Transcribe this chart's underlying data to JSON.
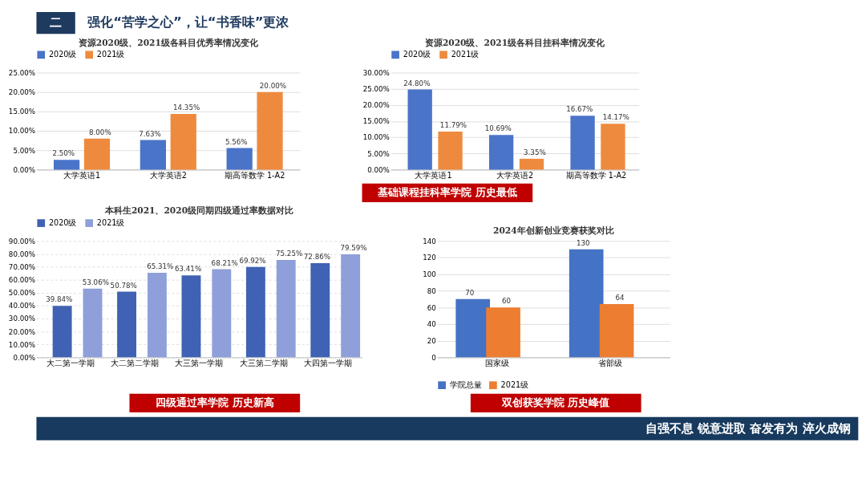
{
  "chart_data": [
    {
      "type": "bar",
      "title": "资源2020级、2021级各科目优秀率情况变化",
      "categories": [
        "大学英语1",
        "大学英语2",
        "期高等数学 1-A2"
      ],
      "series": [
        {
          "name": "2020级",
          "color": "#4a74c8",
          "values": [
            2.5,
            7.63,
            5.56
          ],
          "value_labels": [
            "2.50%",
            "7.63%",
            "5.56%"
          ]
        },
        {
          "name": "2021级",
          "color": "#ee8a3e",
          "values": [
            8.0,
            14.35,
            20.0
          ],
          "value_labels": [
            "8.00%",
            "14.35%",
            "20.00%"
          ]
        }
      ],
      "ylim": [
        0,
        25
      ],
      "yticks": [
        {
          "value": 0,
          "label": "0.00%"
        },
        {
          "value": 5,
          "label": "5.00%"
        },
        {
          "value": 10,
          "label": "10.00%"
        },
        {
          "value": 15,
          "label": "15.00%"
        },
        {
          "value": 20,
          "label": "20.00%"
        },
        {
          "value": 25,
          "label": "25.00%"
        }
      ],
      "grid": "y",
      "legend": "top",
      "annotations": [
        "二",
        "强化“苦学之心”，让“书香味”更浓"
      ]
    },
    {
      "type": "bar",
      "title": "资源2020级、2021级各科目挂科率情况变化",
      "categories": [
        "大学英语1",
        "大学英语2",
        "期高等数学 1-A2"
      ],
      "series": [
        {
          "name": "2020级",
          "color": "#4a74c8",
          "values": [
            24.8,
            10.69,
            16.67
          ],
          "value_labels": [
            "24.80%",
            "10.69%",
            "16.67%"
          ]
        },
        {
          "name": "2021级",
          "color": "#ee8a3e",
          "values": [
            11.79,
            3.35,
            14.17
          ],
          "value_labels": [
            "11.79%",
            "3.35%",
            "14.17%"
          ]
        }
      ],
      "ylim": [
        0,
        30
      ],
      "yticks": [
        {
          "value": 0,
          "label": "0.00%"
        },
        {
          "value": 5,
          "label": "5.00%"
        },
        {
          "value": 10,
          "label": "10.00%"
        },
        {
          "value": 15,
          "label": "15.00%"
        },
        {
          "value": 20,
          "label": "20.00%"
        },
        {
          "value": 25,
          "label": "25.00%"
        },
        {
          "value": 30,
          "label": "30.00%"
        }
      ],
      "grid": "y",
      "legend": "top",
      "annotations": [
        "基础课程挂科率学院 历史最低"
      ]
    },
    {
      "type": "bar",
      "title": "本科生2021、2020级同期四级通过率数据对比",
      "categories": [
        "大二第一学期",
        "大二第二学期",
        "大三第一学期",
        "大三第二学期",
        "大四第一学期"
      ],
      "series": [
        {
          "name": "2020级",
          "color": "#3f62b4",
          "values": [
            39.84,
            50.78,
            63.41,
            69.92,
            72.86
          ],
          "value_labels": [
            "39.84%",
            "50.78%",
            "63.41%",
            "69.92%",
            "72.86%"
          ]
        },
        {
          "name": "2021级",
          "color": "#8e9fd9",
          "values": [
            53.06,
            65.31,
            68.21,
            75.25,
            79.59
          ],
          "value_labels": [
            "53.06%",
            "65.31%",
            "68.21%",
            "75.25%",
            "79.59%"
          ]
        }
      ],
      "ylim": [
        0,
        90
      ],
      "yticks": [
        {
          "value": 0,
          "label": "0.00%"
        },
        {
          "value": 10,
          "label": "10.00%"
        },
        {
          "value": 20,
          "label": "20.00%"
        },
        {
          "value": 30,
          "label": "30.00%"
        },
        {
          "value": 40,
          "label": "40.00%"
        },
        {
          "value": 50,
          "label": "50.00%"
        },
        {
          "value": 60,
          "label": "60.00%"
        },
        {
          "value": 70,
          "label": "70.00%"
        },
        {
          "value": 80,
          "label": "80.00%"
        },
        {
          "value": 90,
          "label": "90.00%"
        }
      ],
      "grid": "y",
      "legend": "top",
      "annotations": [
        "四级通过率学院 历史新高"
      ]
    },
    {
      "type": "bar",
      "title": "2024年创新创业竞赛获奖对比",
      "categories": [
        "国家级",
        "省部级"
      ],
      "series": [
        {
          "name": "学院总量",
          "color": "#4472c4",
          "values": [
            70,
            130
          ]
        },
        {
          "name": "2021级",
          "color": "#ed7d31",
          "values": [
            60,
            64
          ]
        }
      ],
      "ylim": [
        0,
        140
      ],
      "yticks": [
        0,
        20,
        40,
        60,
        80,
        100,
        120,
        140
      ],
      "grid": "y",
      "legend": "bottom",
      "data_labels": true,
      "annotations": [
        "双创获奖学院 历史峰值",
        "自强不息 锐意进取 奋发有为 淬火成钢"
      ]
    }
  ]
}
